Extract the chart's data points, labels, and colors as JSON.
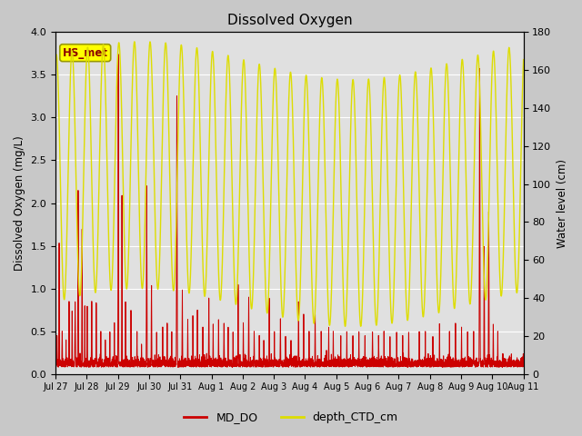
{
  "title": "Dissolved Oxygen",
  "ylabel_left": "Dissolved Oxygen (mg/L)",
  "ylabel_right": "Water level (cm)",
  "ylim_left": [
    0.0,
    4.0
  ],
  "ylim_right": [
    0,
    180
  ],
  "bg_outer": "#d8d8d8",
  "bg_inner_top": "#e8e8e8",
  "bg_inner_bottom": "#d0d0d0",
  "legend_entries": [
    "MD_DO",
    "depth_CTD_cm"
  ],
  "legend_colors": [
    "#cc0000",
    "#ffff00"
  ],
  "annotation_text": "HS_met",
  "annotation_box_color": "#ffff00",
  "annotation_text_color": "#8b0000",
  "n_days": 15.5,
  "xtick_labels": [
    "Jul 27",
    "Jul 28",
    "Jul 29",
    "Jul 30",
    "Jul 31",
    "Aug 1",
    "Aug 2",
    "Aug 3",
    "Aug 4",
    "Aug 5",
    "Aug 6",
    "Aug 7",
    "Aug 8",
    "Aug 9",
    "Aug 10",
    "Aug 11"
  ],
  "grid_color": "#ffffff",
  "line_color_do": "#cc0000",
  "line_color_depth": "#cccc00",
  "yticks_left": [
    0.0,
    0.5,
    1.0,
    1.5,
    2.0,
    2.5,
    3.0,
    3.5,
    4.0
  ],
  "yticks_right": [
    0,
    20,
    40,
    60,
    80,
    100,
    120,
    140,
    160,
    180
  ]
}
